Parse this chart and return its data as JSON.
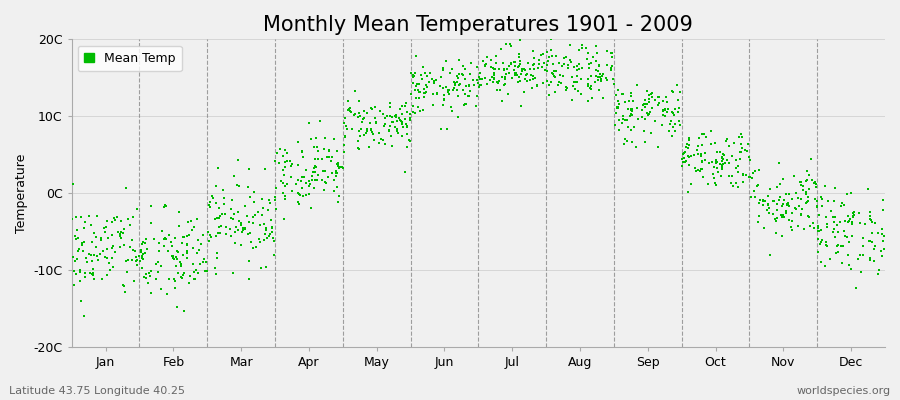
{
  "title": "Monthly Mean Temperatures 1901 - 2009",
  "ylabel": "Temperature",
  "ylim": [
    -20,
    20
  ],
  "yticks": [
    -20,
    -10,
    0,
    10,
    20
  ],
  "ytick_labels": [
    "-20C",
    "-10C",
    "0C",
    "10C",
    "20C"
  ],
  "months": [
    "Jan",
    "Feb",
    "Mar",
    "Apr",
    "May",
    "Jun",
    "Jul",
    "Aug",
    "Sep",
    "Oct",
    "Nov",
    "Dec"
  ],
  "month_days": [
    31,
    28,
    31,
    30,
    31,
    30,
    31,
    31,
    30,
    31,
    30,
    31
  ],
  "mean_temps": [
    -7.5,
    -8.5,
    -3.5,
    3.0,
    9.0,
    13.5,
    16.0,
    15.5,
    10.5,
    4.5,
    -1.0,
    -5.0
  ],
  "std_temps": [
    3.2,
    3.2,
    2.8,
    2.4,
    1.8,
    1.8,
    1.6,
    1.8,
    2.0,
    2.0,
    2.5,
    2.8
  ],
  "n_years": 109,
  "dot_color": "#00bb00",
  "dot_size": 2,
  "bg_color": "#f0f0f0",
  "plot_bg_color": "#f0f0f0",
  "title_fontsize": 15,
  "axis_fontsize": 9,
  "tick_fontsize": 9,
  "legend_label": "Mean Temp",
  "footer_left": "Latitude 43.75 Longitude 40.25",
  "footer_right": "worldspecies.org",
  "footer_fontsize": 8,
  "seed": 42
}
